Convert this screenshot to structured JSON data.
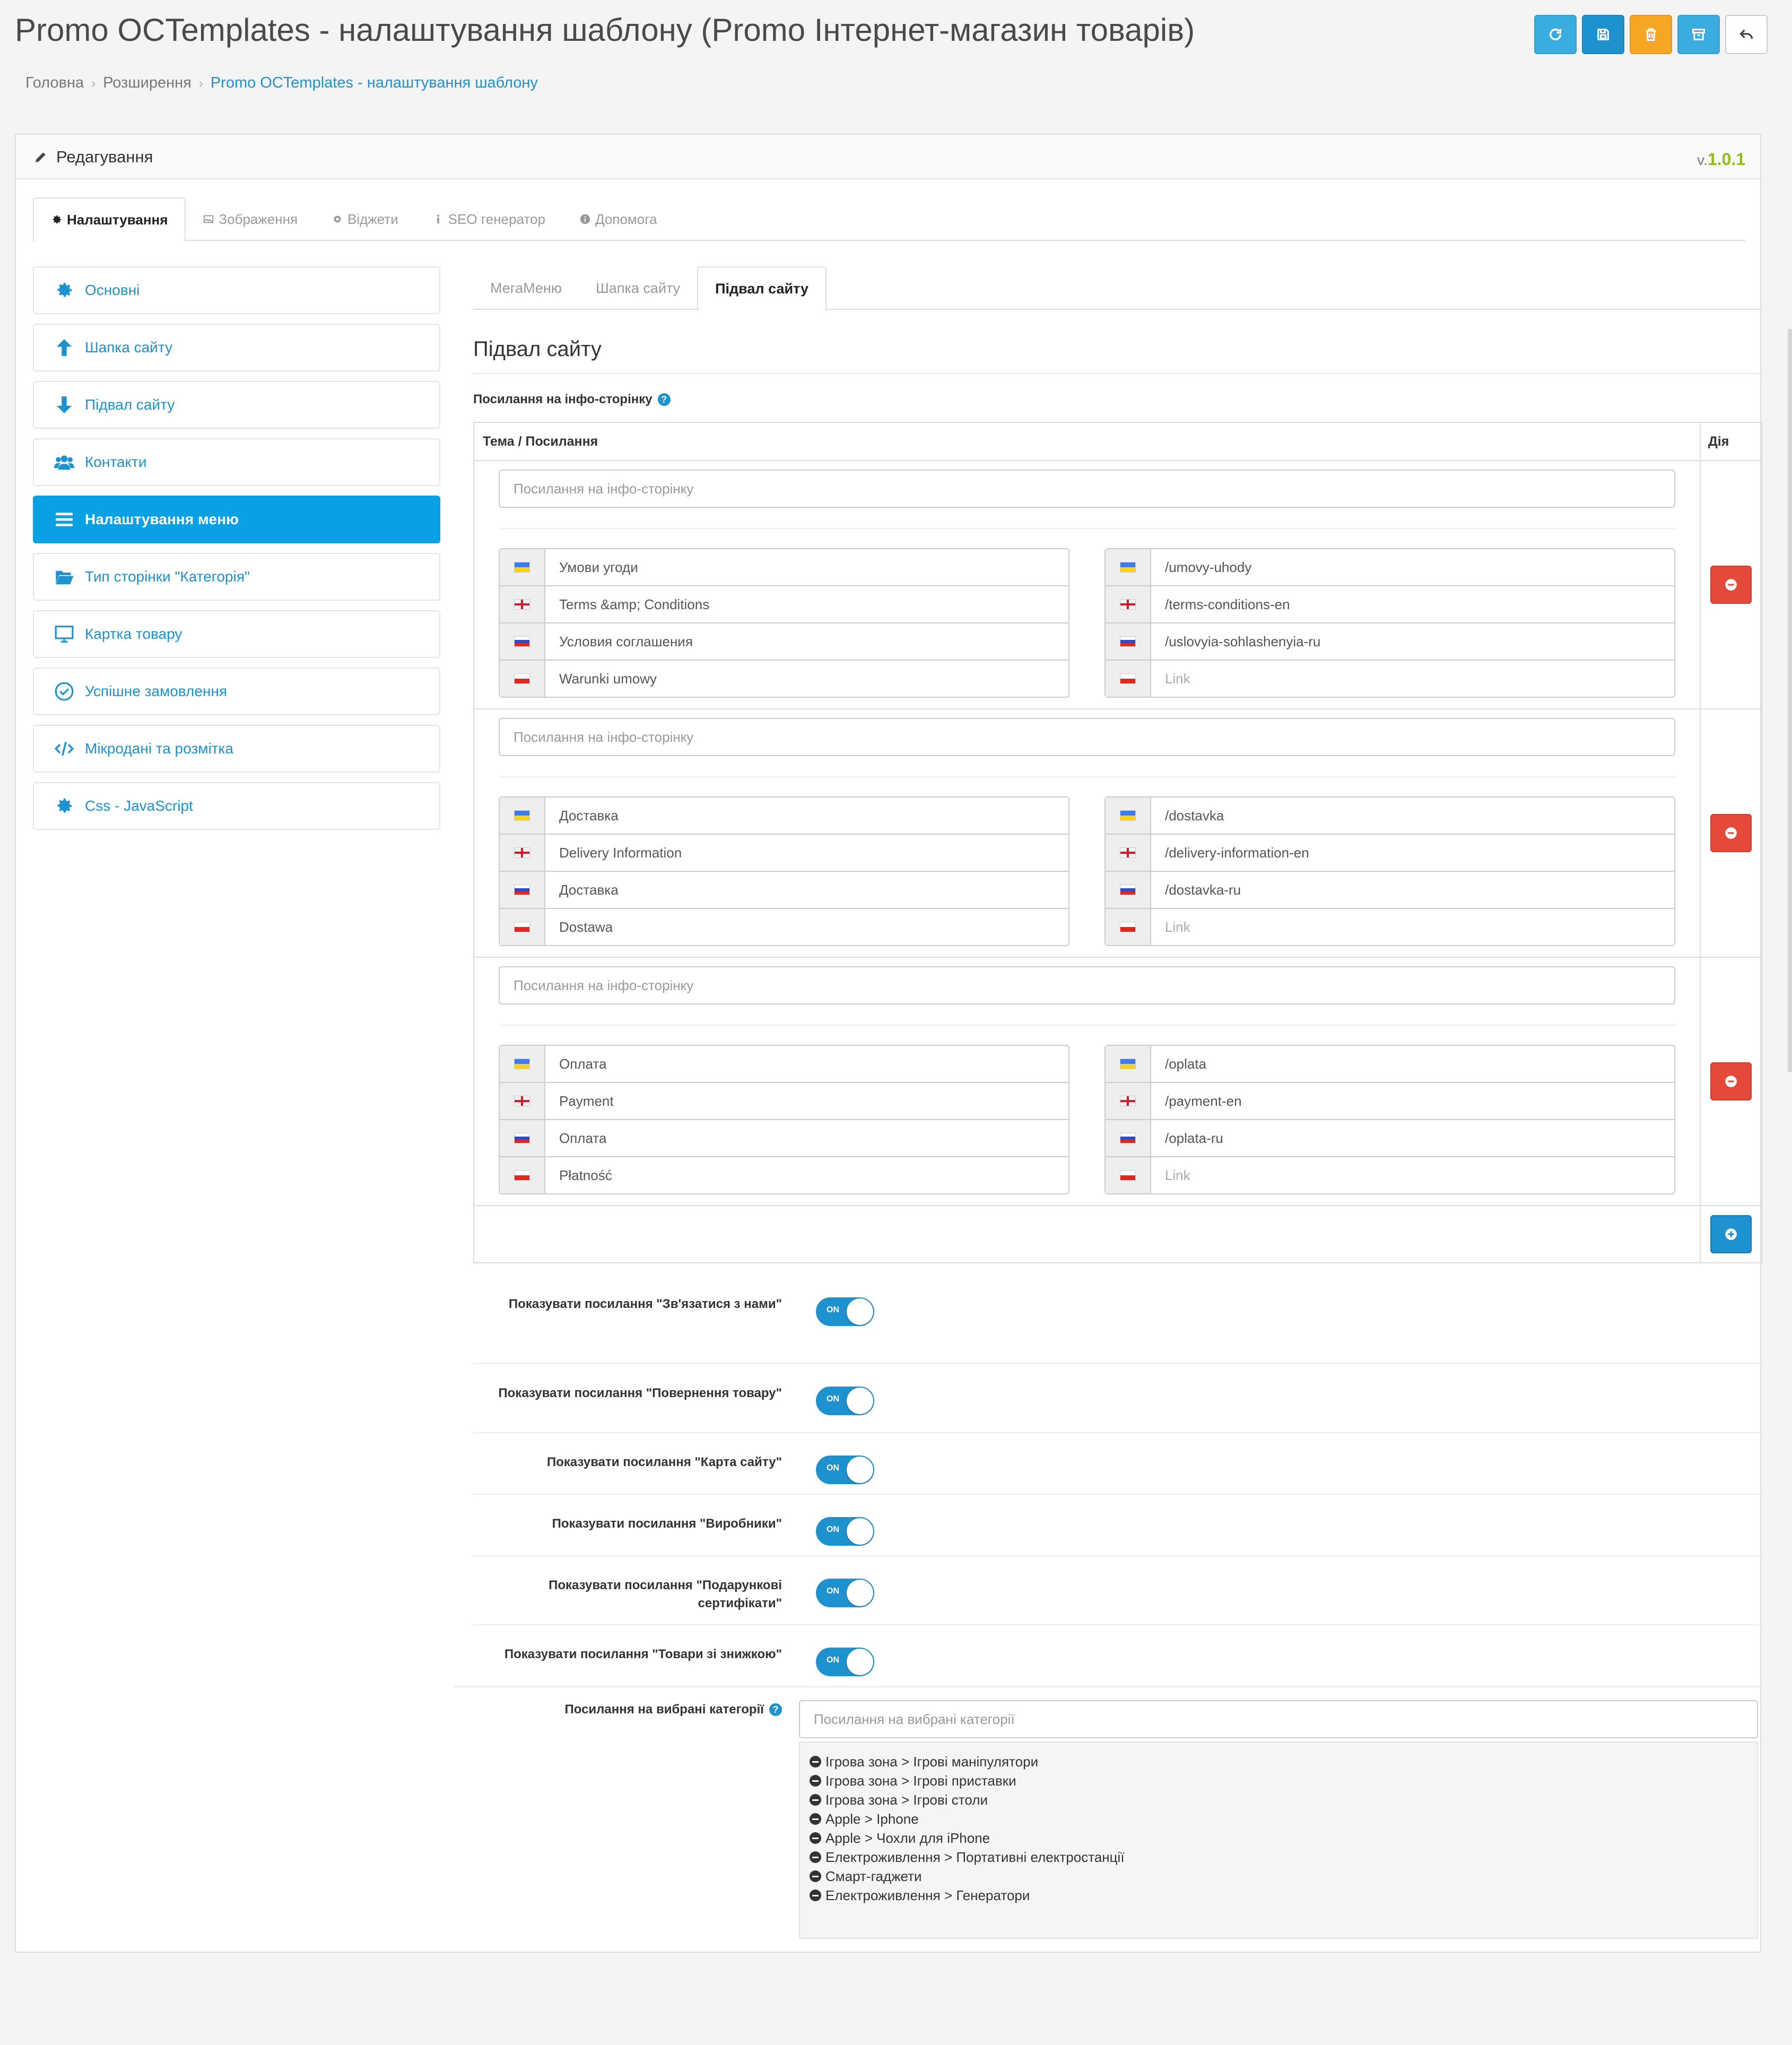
{
  "page": {
    "title": "Promo OCTemplates - налаштування шаблону (Promo Інтернет-магазин товарів)",
    "breadcrumb": [
      "Головна",
      "Розширення",
      "Promo OCTemplates - налаштування шаблону"
    ]
  },
  "header_buttons": [
    {
      "name": "refresh",
      "icon": "refresh-icon",
      "color": "#3aace0"
    },
    {
      "name": "save",
      "icon": "save-icon",
      "color": "#1e91cf"
    },
    {
      "name": "delete",
      "icon": "trash-icon",
      "color": "#f5a623"
    },
    {
      "name": "archive",
      "icon": "archive-icon",
      "color": "#3aace0"
    },
    {
      "name": "back",
      "icon": "reply-icon",
      "color": "#ffffff"
    }
  ],
  "panel": {
    "title": "Редагування",
    "version_prefix": "v.",
    "version": "1.0.1"
  },
  "top_tabs": [
    {
      "label": "Налаштування",
      "icon": "gear-icon",
      "active": true
    },
    {
      "label": "Зображення",
      "icon": "image-icon",
      "active": false
    },
    {
      "label": "Віджети",
      "icon": "gear-icon",
      "active": false
    },
    {
      "label": "SEO генератор",
      "icon": "info-icon",
      "active": false
    },
    {
      "label": "Допомога",
      "icon": "info-circle-icon",
      "active": false
    }
  ],
  "sidebar": {
    "items": [
      {
        "label": "Основні",
        "icon": "gear-icon",
        "active": false
      },
      {
        "label": "Шапка сайту",
        "icon": "arrow-up-icon",
        "active": false
      },
      {
        "label": "Підвал сайту",
        "icon": "arrow-down-icon",
        "active": false
      },
      {
        "label": "Контакти",
        "icon": "users-icon",
        "active": false
      },
      {
        "label": "Налаштування меню",
        "icon": "bars-icon",
        "active": true
      },
      {
        "label": "Тип сторінки \"Категорія\"",
        "icon": "folder-open-icon",
        "active": false
      },
      {
        "label": "Картка товару",
        "icon": "monitor-icon",
        "active": false
      },
      {
        "label": "Успішне замовлення",
        "icon": "check-circle-icon",
        "active": false
      },
      {
        "label": "Мікродані та розмітка",
        "icon": "code-icon",
        "active": false
      },
      {
        "label": "Css - JavaScript",
        "icon": "gear-icon",
        "active": false
      }
    ]
  },
  "sub_tabs": [
    {
      "label": "МегаМеню",
      "active": false
    },
    {
      "label": "Шапка сайту",
      "active": false
    },
    {
      "label": "Підвал сайту",
      "active": true
    }
  ],
  "section": {
    "title": "Підвал сайту",
    "links_label": "Посилання на інфо-сторінку"
  },
  "links_table": {
    "col_topic": "Тема / Посилання",
    "col_action": "Дія",
    "topic_placeholder": "Посилання на інфо-сторінку",
    "link_placeholder": "Link",
    "rows": [
      {
        "titles": [
          {
            "lang": "ua",
            "value": "Умови угоди"
          },
          {
            "lang": "gb",
            "value": "Terms &amp; Conditions"
          },
          {
            "lang": "ru",
            "value": "Условия соглашения"
          },
          {
            "lang": "pl",
            "value": "Warunki umowy"
          }
        ],
        "links": [
          {
            "lang": "ua",
            "value": "/umovy-uhody"
          },
          {
            "lang": "gb",
            "value": "/terms-conditions-en"
          },
          {
            "lang": "ru",
            "value": "/uslovyia-sohlashenyia-ru"
          },
          {
            "lang": "pl",
            "value": ""
          }
        ]
      },
      {
        "titles": [
          {
            "lang": "ua",
            "value": "Доставка"
          },
          {
            "lang": "gb",
            "value": "Delivery Information"
          },
          {
            "lang": "ru",
            "value": "Доставка"
          },
          {
            "lang": "pl",
            "value": "Dostawa"
          }
        ],
        "links": [
          {
            "lang": "ua",
            "value": "/dostavka"
          },
          {
            "lang": "gb",
            "value": "/delivery-information-en"
          },
          {
            "lang": "ru",
            "value": "/dostavka-ru"
          },
          {
            "lang": "pl",
            "value": ""
          }
        ]
      },
      {
        "titles": [
          {
            "lang": "ua",
            "value": "Оплата"
          },
          {
            "lang": "gb",
            "value": "Payment"
          },
          {
            "lang": "ru",
            "value": "Оплата"
          },
          {
            "lang": "pl",
            "value": "Płatność"
          }
        ],
        "links": [
          {
            "lang": "ua",
            "value": "/oplata"
          },
          {
            "lang": "gb",
            "value": "/payment-en"
          },
          {
            "lang": "ru",
            "value": "/oplata-ru"
          },
          {
            "lang": "pl",
            "value": ""
          }
        ]
      }
    ]
  },
  "switches": {
    "on_label": "ON",
    "items": [
      {
        "label": "Показувати посилання \"Зв'язатися з нами\"",
        "on": true
      },
      {
        "label": "Показувати посилання \"Повернення товару\"",
        "on": true
      },
      {
        "label": "Показувати посилання \"Карта сайту\"",
        "on": true
      },
      {
        "label": "Показувати посилання \"Виробники\"",
        "on": true
      },
      {
        "label": "Показувати посилання \"Подарункові сертифікати\"",
        "on": true
      },
      {
        "label": "Показувати посилання \"Товари зі знижкою\"",
        "on": true
      }
    ]
  },
  "categories": {
    "label": "Посилання на вибрані категорії",
    "placeholder": "Посилання на вибрані категорії",
    "items": [
      "Ігрова зона > Ігрові маніпулятори",
      "Ігрова зона > Ігрові приставки",
      "Ігрова зона > Ігрові столи",
      "Apple > Iphone",
      "Apple > Чохли для iPhone",
      "Електроживлення > Портативні електростанції",
      "Смарт-гаджети",
      "Електроживлення > Генератори"
    ]
  }
}
